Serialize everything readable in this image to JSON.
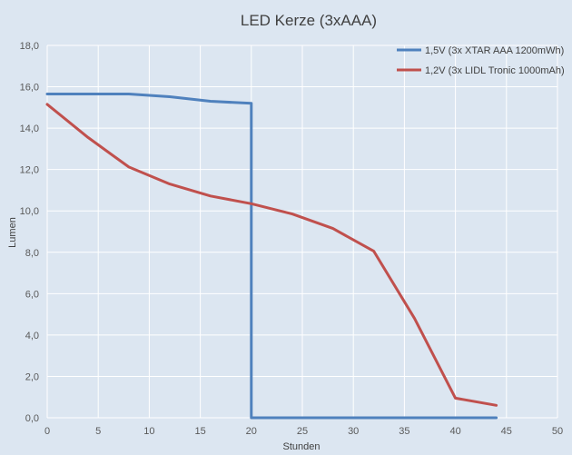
{
  "chart_data": {
    "type": "line",
    "title": "LED Kerze (3xAAA)",
    "xlabel": "Stunden",
    "ylabel": "Lumen",
    "xlim": [
      0,
      50
    ],
    "ylim": [
      0,
      18
    ],
    "x_ticks": [
      0,
      5,
      10,
      15,
      20,
      25,
      30,
      35,
      40,
      45,
      50
    ],
    "y_ticks": [
      0,
      2,
      4,
      6,
      8,
      10,
      12,
      14,
      16,
      18
    ],
    "y_tick_labels": [
      "0,0",
      "2,0",
      "4,0",
      "6,0",
      "8,0",
      "10,0",
      "12,0",
      "14,0",
      "16,0",
      "18,0"
    ],
    "grid": true,
    "legend_position": "top-right",
    "series": [
      {
        "name": "1,5V (3x XTAR AAA 1200mWh)",
        "color": "#4f81bd",
        "points": [
          [
            0,
            15.65
          ],
          [
            4,
            15.65
          ],
          [
            8,
            15.65
          ],
          [
            12,
            15.52
          ],
          [
            16,
            15.3
          ],
          [
            20,
            15.2
          ],
          [
            20,
            0
          ],
          [
            24,
            0
          ],
          [
            28,
            0
          ],
          [
            32,
            0
          ],
          [
            36,
            0
          ],
          [
            40,
            0
          ],
          [
            44,
            0
          ]
        ]
      },
      {
        "name": "1,2V (3x LIDL Tronic 1000mAh)",
        "color": "#c0504d",
        "points": [
          [
            0,
            15.15
          ],
          [
            4,
            13.55
          ],
          [
            8,
            12.12
          ],
          [
            12,
            11.3
          ],
          [
            16,
            10.72
          ],
          [
            20,
            10.35
          ],
          [
            24,
            9.85
          ],
          [
            28,
            9.15
          ],
          [
            32,
            8.05
          ],
          [
            36,
            4.8
          ],
          [
            40,
            0.95
          ],
          [
            44,
            0.6
          ]
        ]
      }
    ]
  }
}
